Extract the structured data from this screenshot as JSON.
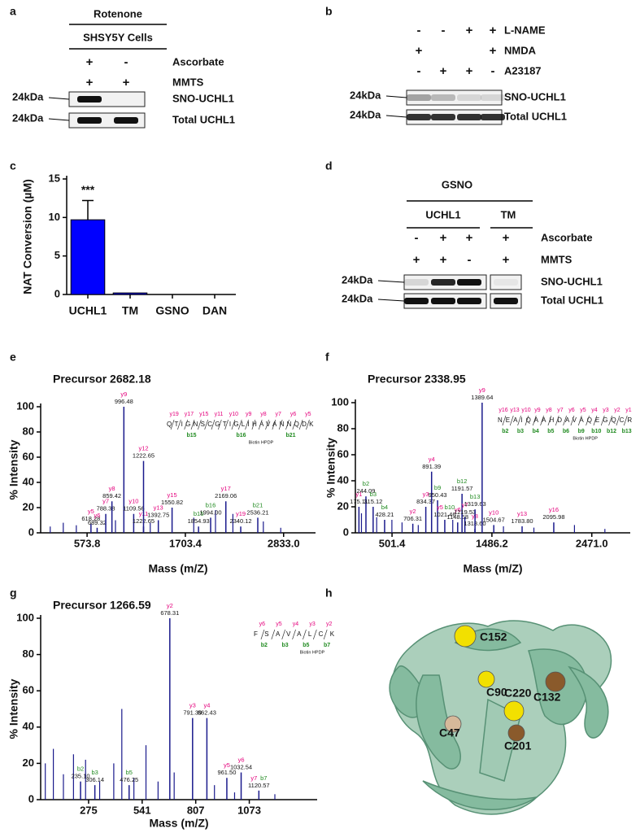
{
  "panels": [
    {
      "letter": "a",
      "headers": [
        "Rotenone",
        "SHSY5Y Cells"
      ],
      "conditions": [
        {
          "name": "Ascorbate",
          "signs": [
            "+",
            "-"
          ]
        },
        {
          "name": "MMTS",
          "signs": [
            "+",
            "+"
          ]
        }
      ],
      "blots": [
        {
          "marker": "24kDa",
          "name": "SNO-UCHL1"
        },
        {
          "marker": "24kDa",
          "name": "Total UCHL1"
        }
      ]
    },
    {
      "letter": "b",
      "conditions": [
        {
          "name": "L-NAME",
          "signs": [
            "-",
            "-",
            "+",
            "+"
          ]
        },
        {
          "name": "NMDA",
          "signs": [
            "+",
            null,
            null,
            "+"
          ]
        },
        {
          "name": "A23187",
          "signs": [
            "-",
            "+",
            "+",
            "-"
          ]
        }
      ],
      "blots": [
        {
          "marker": "24kDa",
          "name": "SNO-UCHL1"
        },
        {
          "marker": "24kDa",
          "name": "Total UCHL1"
        }
      ]
    },
    {
      "letter": "d",
      "headers": [
        "GSNO"
      ],
      "groups": [
        "UCHL1",
        "TM"
      ],
      "conditions": [
        {
          "name": "Ascorbate",
          "signs": [
            "-",
            "+",
            "+",
            "+"
          ]
        },
        {
          "name": "MMTS",
          "signs": [
            "+",
            "+",
            "-",
            "+"
          ]
        }
      ],
      "blots": [
        {
          "marker": "24kDa",
          "name": "SNO-UCHL1"
        },
        {
          "marker": "24kDa",
          "name": "Total UCHL1"
        }
      ]
    }
  ],
  "chart_data": [
    {
      "type": "bar",
      "letter": "c",
      "ylabel": "NAT Conversion (µM)",
      "categories": [
        "UCHL1",
        "TM",
        "GSNO",
        "DAN"
      ],
      "values": [
        9.7,
        0.2,
        0,
        0
      ],
      "errors": [
        2.5,
        null,
        null,
        null
      ],
      "color": "#0000ff",
      "ylim": [
        0,
        15
      ],
      "yticks": [
        0,
        5,
        10,
        15
      ],
      "annotation": "***"
    },
    {
      "type": "spectrum",
      "letter": "e",
      "title": "Precursor 2682.18",
      "xlabel": "Mass (m/Z)",
      "ylabel": "% Intensity",
      "xlim": [
        40,
        3200
      ],
      "ylim": [
        0,
        100
      ],
      "xticks": [
        573.8,
        1703.4,
        {
          "value": 2833,
          "label": "2833.0"
        }
      ],
      "yticks": [
        0,
        20,
        40,
        60,
        80,
        100
      ],
      "color": "#1a1a8c",
      "x": [
        618.28,
        689.32,
        788.38,
        859.42,
        996.48,
        1109.56,
        1222.65,
        1222.65,
        1392.75,
        1550.82,
        1854.93,
        1994,
        2169.06,
        2340.12,
        2536.21
      ],
      "x_labels": [
        "618.28",
        "689.32",
        "788.38",
        "859.42",
        "996.48",
        "1109.56",
        "1222.65",
        "1222.65",
        "1392.75",
        "1550.82",
        "1854.93",
        "1994.00",
        "2169.06",
        "2340.12",
        "2536.21"
      ],
      "values": [
        7,
        4,
        15,
        25,
        100,
        15,
        5,
        57,
        10,
        20,
        5,
        12,
        25,
        5,
        12
      ],
      "ions": [
        [
          "y5"
        ],
        [
          "y6"
        ],
        [
          "y7"
        ],
        [
          "y8"
        ],
        [
          "y9"
        ],
        [
          "y10"
        ],
        [
          "y11"
        ],
        [
          "y12"
        ],
        [
          "y13"
        ],
        [
          "y15"
        ],
        [
          "b15"
        ],
        [
          "b16"
        ],
        [
          "y17"
        ],
        [
          "y19"
        ],
        [
          "b21"
        ]
      ],
      "other_x": [
        150,
        300,
        450,
        900,
        1300,
        1800,
        2050,
        2250,
        2600,
        2800
      ],
      "other_values": [
        5,
        8,
        6,
        10,
        8,
        12,
        18,
        15,
        9,
        4
      ],
      "sequence": "QTIGNSCGTIGLIHAVANNQDK",
      "top_ions": [
        "y19",
        "y17",
        "y15",
        "y11",
        "y10",
        "y9",
        "y8",
        "y7",
        "y6",
        "y5"
      ],
      "bottom_ions": [
        "b15",
        "b16",
        "b21"
      ],
      "modification": "Biotin HPDP"
    },
    {
      "type": "spectrum",
      "letter": "f",
      "title": "Precursor 2338.95",
      "xlabel": "Mass (m/Z)",
      "ylabel": "% Intensity",
      "xlim": [
        140,
        2850
      ],
      "ylim": [
        0,
        100
      ],
      "xticks": [
        501.4,
        1486.2,
        {
          "value": 2471,
          "label": "2471.0"
        }
      ],
      "yticks": [
        0,
        20,
        40,
        60,
        80,
        100
      ],
      "color": "#1a1a8c",
      "x": [
        175.11,
        244.09,
        315.12,
        428.21,
        706.31,
        834.37,
        891.39,
        950.43,
        1021.46,
        1148.58,
        1191.57,
        1219.53,
        1318.6,
        1319.63,
        1389.64,
        1504.67,
        1783.8,
        2095.98
      ],
      "x_labels": [
        "175.11",
        "244.09",
        "315.12",
        "428.21",
        "706.31",
        "834.37",
        "891.39",
        "950.43",
        "1021.46",
        "1148.58",
        "1191.57",
        "1219.53",
        "1318.60",
        "1319.63",
        "1389.64",
        "1504.67",
        "1783.80",
        "2095.98"
      ],
      "values": [
        20,
        28,
        20,
        10,
        7,
        20,
        47,
        25,
        10,
        8,
        30,
        12,
        3,
        18,
        100,
        6,
        5,
        8
      ],
      "ions": [
        [
          "y1"
        ],
        [
          "b2"
        ],
        [
          "b3"
        ],
        [
          "b4"
        ],
        [
          "y2"
        ],
        [
          "y3"
        ],
        [
          "y4"
        ],
        [
          "b9"
        ],
        [
          "y5",
          "b10"
        ],
        [
          "y6"
        ],
        [
          "b12"
        ],
        [
          "y7"
        ],
        [
          "y8"
        ],
        [
          "b13"
        ],
        [
          "y9"
        ],
        [
          "y10"
        ],
        [
          "y13"
        ],
        [
          "y16"
        ]
      ],
      "other_x": [
        200,
        350,
        500,
        600,
        760,
        1100,
        1600,
        1900,
        2300,
        2600
      ],
      "other_values": [
        15,
        12,
        10,
        8,
        6,
        10,
        5,
        4,
        6,
        3
      ],
      "sequence": "NEAIQAAHDAVAQEGQCR",
      "top_ions": [
        "y16",
        "y13",
        "y10",
        "y9",
        "y8",
        "y7",
        "y6",
        "y5",
        "y4",
        "y3",
        "y2",
        "y1"
      ],
      "bottom_ions": [
        "b2",
        "b3",
        "b4",
        "b5",
        "b6",
        "b9",
        "b10",
        "b12",
        "b13"
      ],
      "modification": "Biotin HPDP"
    },
    {
      "type": "spectrum",
      "letter": "g",
      "title": "Precursor 1266.59",
      "xlabel": "Mass (m/Z)",
      "ylabel": "% Intensity",
      "xlim": [
        37,
        1410
      ],
      "ylim": [
        0,
        100
      ],
      "xticks": [
        275,
        541,
        807,
        1073
      ],
      "yticks": [
        0,
        20,
        40,
        60,
        80,
        100
      ],
      "color": "#1a1a8c",
      "x": [
        235.1,
        306.14,
        476.25,
        678.31,
        791.39,
        862.43,
        961.5,
        1032.54,
        1120.57
      ],
      "x_labels": [
        "235.10",
        "306.14",
        "476.25",
        "678.31",
        "791.39",
        "862.43",
        "961.50",
        "1032.54",
        "1120.57"
      ],
      "values": [
        10,
        8,
        8,
        100,
        45,
        45,
        12,
        15,
        5
      ],
      "ions": [
        [
          "b2"
        ],
        [
          "b3"
        ],
        [
          "b5"
        ],
        [
          "y2"
        ],
        [
          "y3"
        ],
        [
          "y4"
        ],
        [
          "y5"
        ],
        [
          "y6"
        ],
        [
          "y7",
          "b7"
        ]
      ],
      "other_x": [
        60,
        100,
        150,
        200,
        260,
        330,
        400,
        440,
        500,
        560,
        620,
        700,
        900,
        1000,
        1200
      ],
      "other_values": [
        20,
        28,
        14,
        25,
        22,
        10,
        20,
        50,
        12,
        30,
        10,
        15,
        8,
        4,
        3
      ],
      "sequence": "FSAVALCK",
      "top_ions": [
        "y6",
        "y5",
        "y4",
        "y3",
        "y2"
      ],
      "bottom_ions": [
        "b2",
        "b3",
        "b5",
        "b7"
      ],
      "modification": "Biotin HPDP"
    }
  ],
  "structure": {
    "letter": "h",
    "residues": [
      "C152",
      "C90",
      "C132",
      "C220",
      "C47",
      "C201"
    ]
  }
}
